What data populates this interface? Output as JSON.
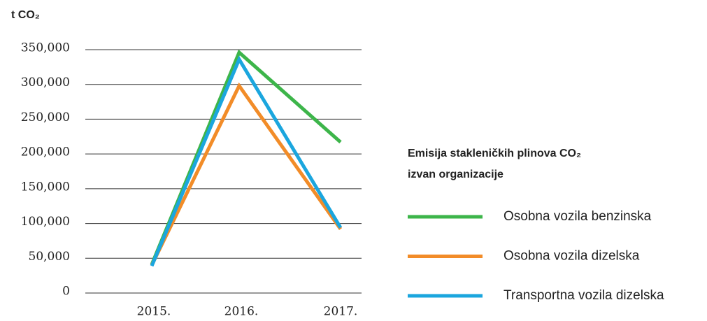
{
  "chart_data": {
    "type": "line",
    "axis_title": "t CO₂",
    "legend_title": [
      "Emisija stakleničkih plinova CO₂",
      "izvan organizacije"
    ],
    "categories": [
      "2015.",
      "2016.",
      "2017."
    ],
    "series": [
      {
        "name": "Osobna vozila benzinska",
        "color": "#3db54a",
        "values": [
          41000,
          346000,
          217000
        ]
      },
      {
        "name": "Osobna vozila dizelska",
        "color": "#f28c28",
        "values": [
          40000,
          298000,
          92000
        ]
      },
      {
        "name": "Transportna vozila dizelska",
        "color": "#1ba6de",
        "values": [
          39000,
          336000,
          94000
        ]
      }
    ],
    "ylim": [
      0,
      350000
    ],
    "yticks": [
      0,
      {
        "value": 50000,
        "label": "50,000"
      },
      {
        "value": 100000,
        "label": "100,000"
      },
      {
        "value": 150000,
        "label": "150,000"
      },
      {
        "value": 200000,
        "label": "200,000"
      },
      {
        "value": 250000,
        "label": "250,000"
      },
      {
        "value": 300000,
        "label": "300,000"
      },
      {
        "value": 350000,
        "label": "350,000"
      }
    ],
    "grid": true
  }
}
